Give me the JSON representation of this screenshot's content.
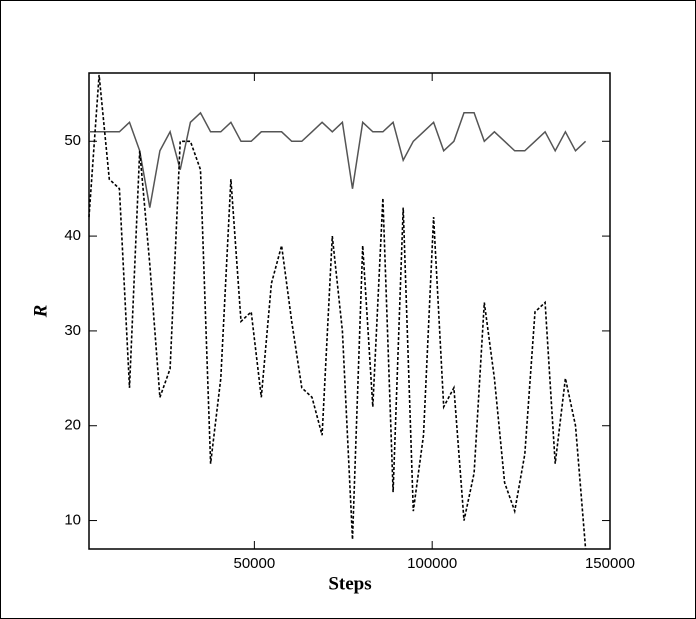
{
  "chart_data": {
    "type": "line",
    "x_label": "Steps",
    "y_label": "R",
    "x": [
      3500,
      6350,
      9200,
      12050,
      14900,
      17750,
      20600,
      23450,
      26300,
      29150,
      32000,
      34850,
      37700,
      40550,
      43400,
      46250,
      49100,
      51950,
      54800,
      57650,
      60500,
      63350,
      66200,
      69050,
      71900,
      74750,
      77600,
      80450,
      83300,
      86150,
      89000,
      91850,
      94700,
      97550,
      100400,
      103250,
      106100,
      108950,
      111800,
      114650,
      117500,
      120350,
      123200,
      126050,
      128900,
      131750,
      134600,
      137450,
      140300,
      143150
    ],
    "series": [
      {
        "color": "#555555",
        "line_style": "solid",
        "values": [
          51,
          51,
          51,
          51,
          52,
          49,
          43,
          49,
          51,
          47,
          52,
          53,
          51,
          51,
          52,
          50,
          50,
          51,
          51,
          51,
          50,
          50,
          51,
          52,
          51,
          52,
          45,
          52,
          51,
          51,
          52,
          48,
          50,
          51,
          52,
          49,
          50,
          53,
          53,
          50,
          51,
          50,
          49,
          49,
          50,
          51,
          49,
          51,
          49,
          50
        ]
      },
      {
        "color": "#000000",
        "line_style": "dashed",
        "values": [
          42,
          57,
          46,
          45,
          24,
          49,
          37,
          23,
          26,
          50,
          50,
          47,
          16,
          25,
          46,
          31,
          32,
          23,
          35,
          39,
          31,
          24,
          23,
          19,
          40,
          30,
          8,
          39,
          22,
          44,
          13,
          43,
          11,
          19,
          42,
          22,
          24,
          10,
          15,
          33,
          25,
          14,
          11,
          17,
          32,
          33,
          16,
          25,
          20,
          7
        ]
      }
    ],
    "xlim": [
      3500,
      150000
    ],
    "xticks": [
      50000,
      100000,
      150000
    ],
    "ylim": [
      7,
      57.2
    ],
    "yticks": [
      10,
      20,
      30,
      40,
      50
    ]
  }
}
